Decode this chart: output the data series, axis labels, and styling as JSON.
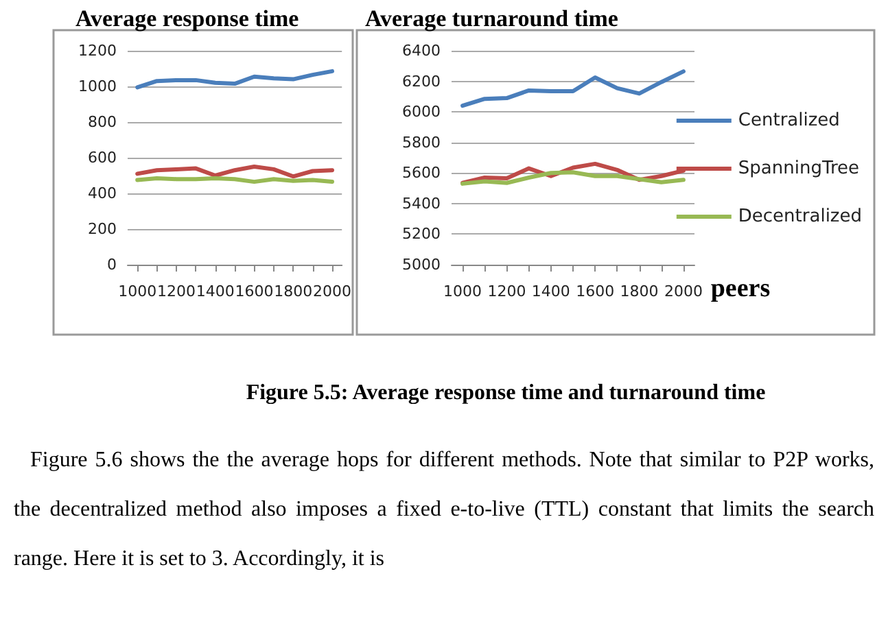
{
  "chart_data": [
    {
      "type": "line",
      "title": "Average response time",
      "x": [
        1000,
        1100,
        1200,
        1300,
        1400,
        1500,
        1600,
        1700,
        1800,
        1900,
        2000
      ],
      "xlim": [
        950,
        2050
      ],
      "xticks": [
        1000,
        1200,
        1400,
        1600,
        1800,
        2000
      ],
      "ylim": [
        0,
        1200
      ],
      "yticks": [
        0,
        200,
        400,
        600,
        800,
        1000,
        1200
      ],
      "grid": "y",
      "legend": false,
      "marker": "none",
      "line_style": "solid",
      "series": [
        {
          "color": "#4a7ebb",
          "values": [
            995,
            1030,
            1035,
            1035,
            1020,
            1015,
            1055,
            1045,
            1040,
            1065,
            1085
          ]
        },
        {
          "color": "#be4b48",
          "values": [
            510,
            530,
            535,
            540,
            500,
            530,
            550,
            535,
            495,
            525,
            530
          ]
        },
        {
          "color": "#98b954",
          "values": [
            475,
            485,
            480,
            480,
            485,
            480,
            465,
            480,
            470,
            475,
            465
          ]
        }
      ]
    },
    {
      "type": "line",
      "title": "Average turnaround time",
      "xlabel": "peers",
      "x": [
        1000,
        1100,
        1200,
        1300,
        1400,
        1500,
        1600,
        1700,
        1800,
        1900,
        2000
      ],
      "xlim": [
        950,
        2050
      ],
      "xticks": [
        1000,
        1200,
        1400,
        1600,
        1800,
        2000
      ],
      "ylim": [
        5000,
        6400
      ],
      "yticks": [
        5000,
        5200,
        5400,
        5600,
        5800,
        6000,
        6200,
        6400
      ],
      "grid": "y",
      "legend": "right",
      "marker": "none",
      "line_style": "solid",
      "series": [
        {
          "name": "Centralized",
          "color": "#4a7ebb",
          "values": [
            6040,
            6085,
            6090,
            6140,
            6135,
            6135,
            6225,
            6155,
            6120,
            6195,
            6265
          ]
        },
        {
          "name": "SpanningTree",
          "color": "#be4b48",
          "values": [
            5535,
            5570,
            5565,
            5630,
            5580,
            5635,
            5660,
            5620,
            5555,
            5580,
            5615
          ]
        },
        {
          "name": "Decentralized",
          "color": "#98b954",
          "values": [
            5530,
            5545,
            5535,
            5570,
            5600,
            5605,
            5580,
            5580,
            5560,
            5540,
            5555
          ]
        }
      ],
      "annotations": [
        "Figure 5.5: Average response time and turnaround time",
        "Figure 5.6 shows the the average hops for different methods. Note that similar to P2P works, the decentralized method also imposes a fixed e-to-live (TTL) constant that limits the search range. Here it is set to 3. Accordingly, it is"
      ]
    }
  ]
}
